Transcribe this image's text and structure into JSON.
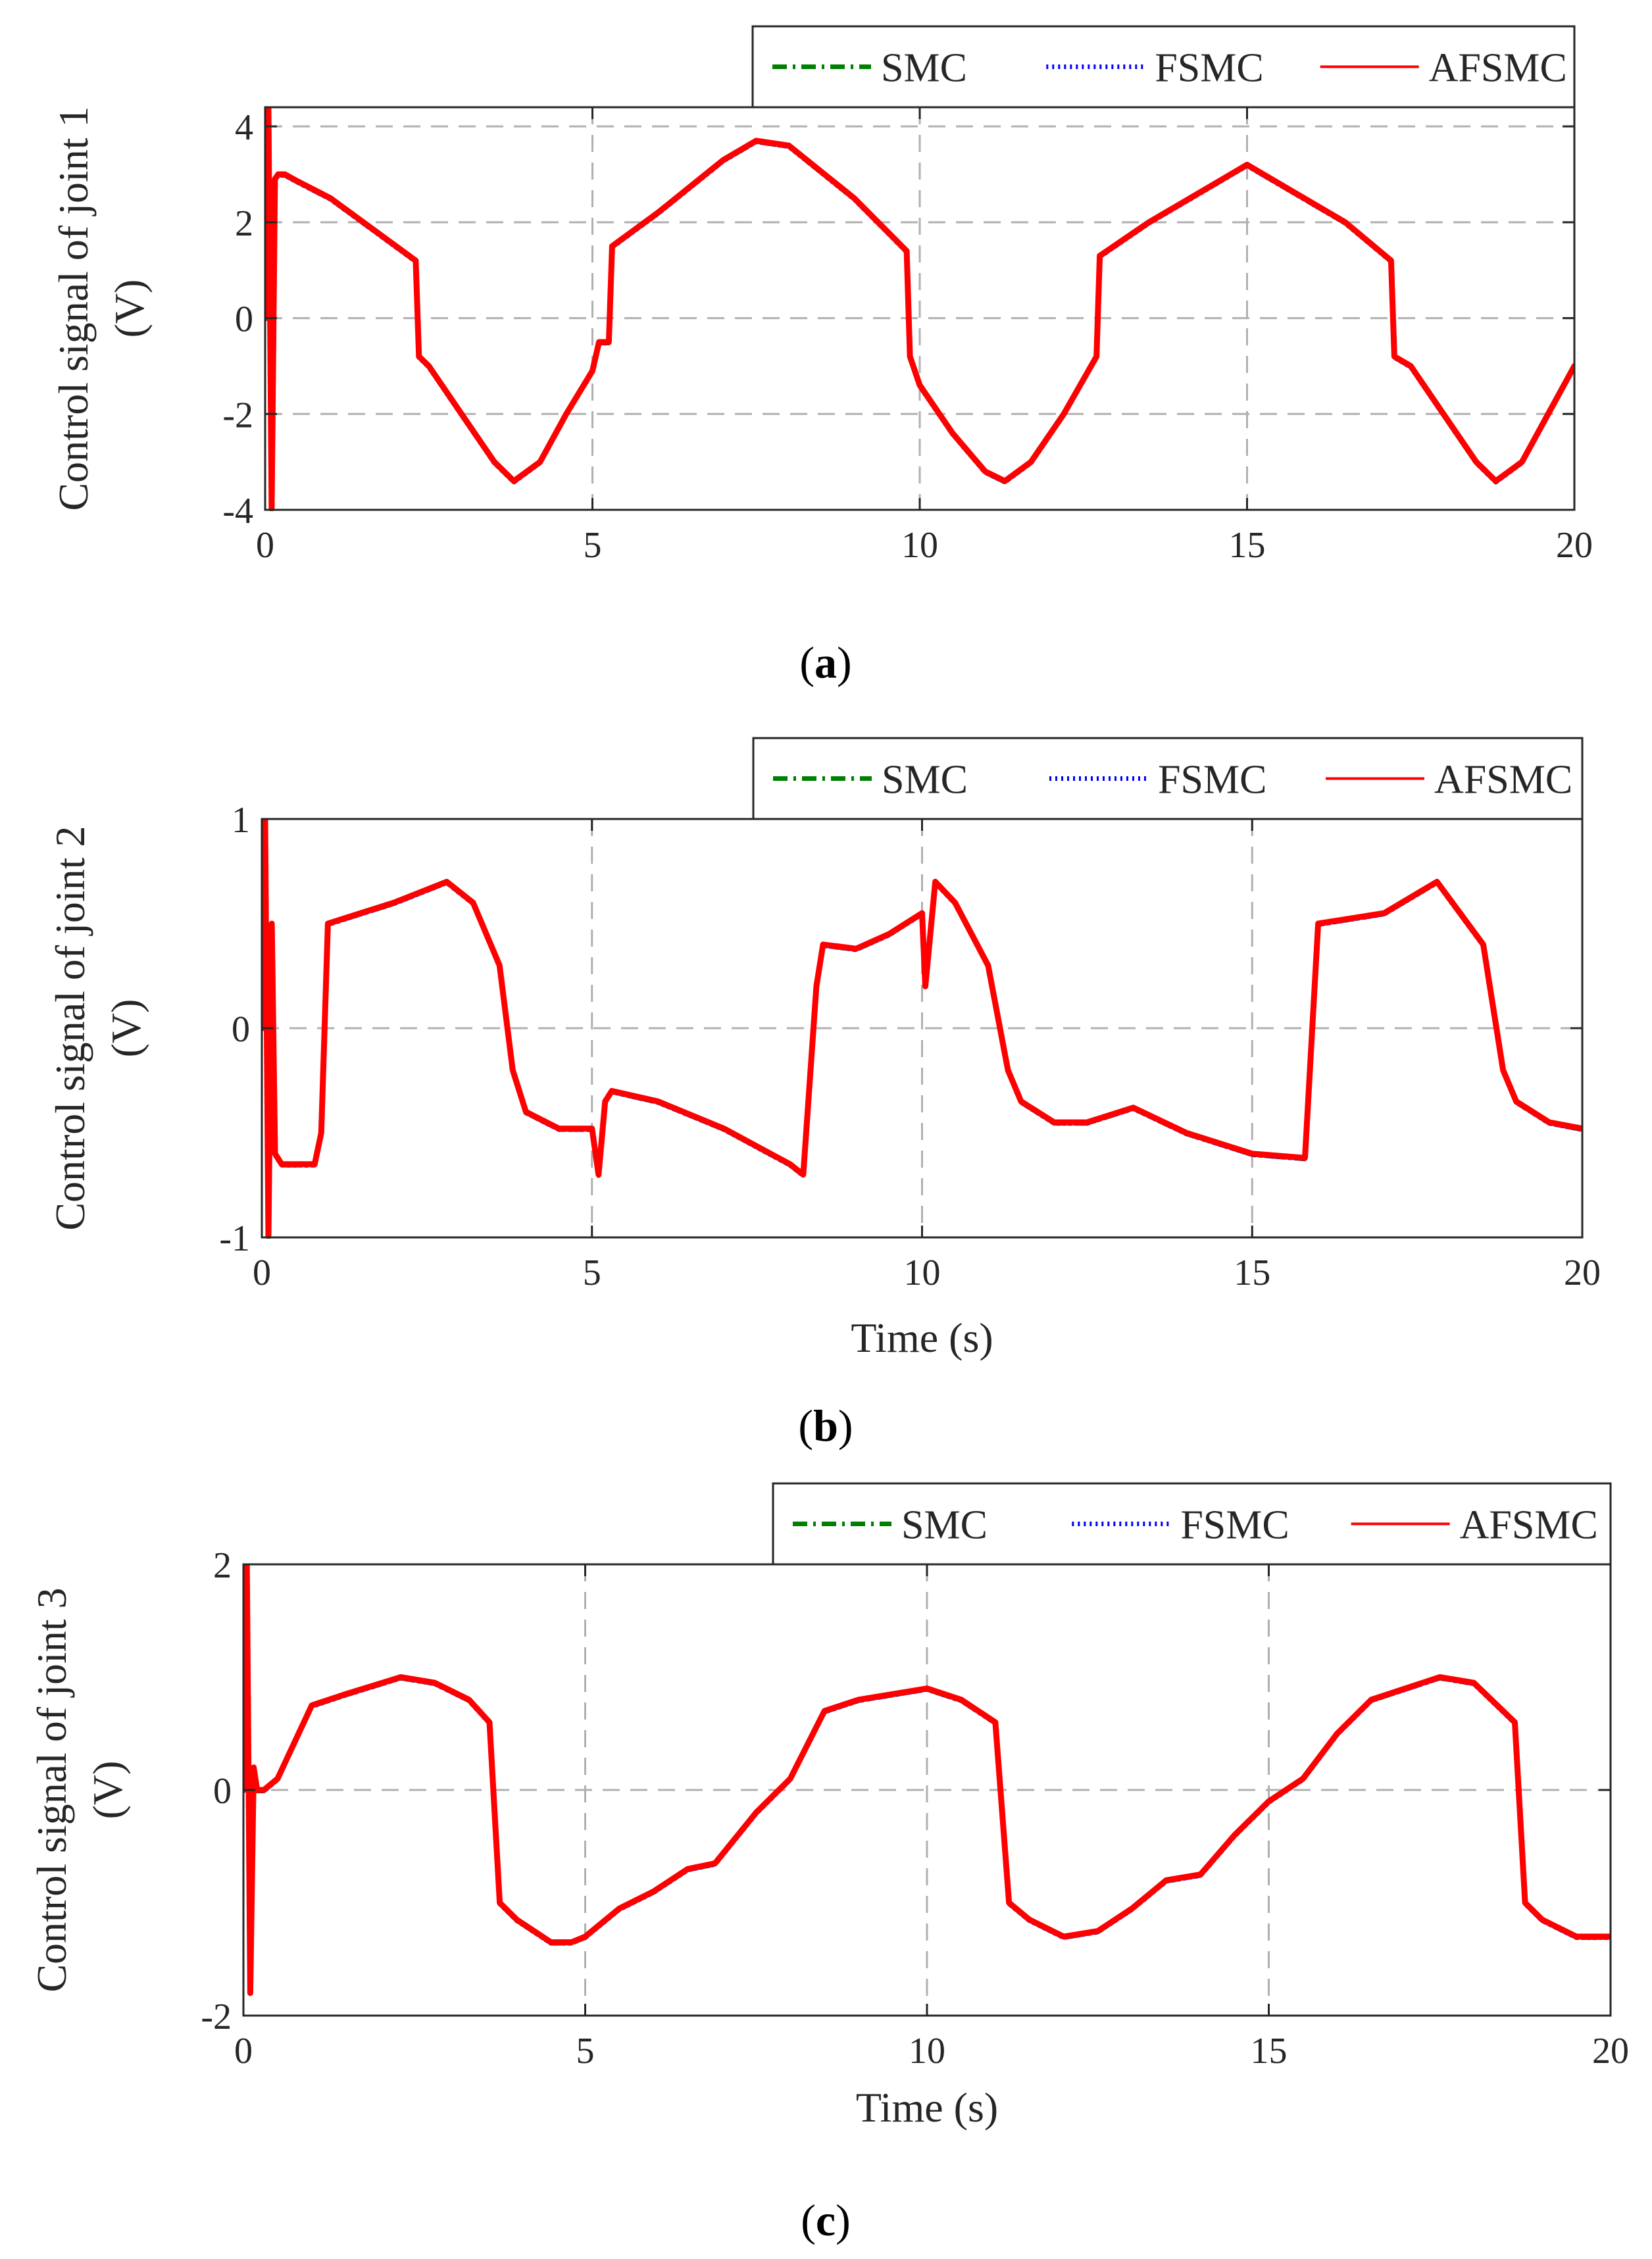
{
  "chart_data": [
    {
      "type": "line",
      "panel": "a",
      "caption_open": "(",
      "caption_letter": "a",
      "caption_close": ")",
      "ylabel": "Control signal of joint 1",
      "ylabel2": "(V)",
      "xlabel": "",
      "xlim": [
        0,
        20
      ],
      "ylim": [
        -4,
        4.4
      ],
      "xticks": [
        0,
        5,
        10,
        15,
        20
      ],
      "yticks": [
        -4,
        -2,
        0,
        2,
        4
      ],
      "grid": true,
      "legend_position": "top-right",
      "legend": [
        "SMC",
        "FSMC",
        "AFSMC"
      ],
      "series_styles": [
        {
          "name": "SMC",
          "color": "#008000",
          "dash": "dashdot"
        },
        {
          "name": "FSMC",
          "color": "#0000ff",
          "dash": "dotted"
        },
        {
          "name": "AFSMC",
          "color": "#ff0000",
          "dash": "solid"
        }
      ],
      "x": [
        0.0,
        0.05,
        0.1,
        0.15,
        0.2,
        0.3,
        0.5,
        1.0,
        1.5,
        2.0,
        2.3,
        2.35,
        2.5,
        3.0,
        3.5,
        3.8,
        4.2,
        4.6,
        5.0,
        5.1,
        5.25,
        5.3,
        6.0,
        7.0,
        7.5,
        8.0,
        9.0,
        9.8,
        9.85,
        10.0,
        10.5,
        11.0,
        11.3,
        11.7,
        12.2,
        12.7,
        12.75,
        13.5,
        14.5,
        15.0,
        15.5,
        16.5,
        17.2,
        17.25,
        17.5,
        18.0,
        18.5,
        18.8,
        19.2,
        20.0
      ],
      "series": [
        {
          "name": "AFSMC",
          "values": [
            0.0,
            4.4,
            -4.0,
            2.9,
            3.0,
            3.0,
            2.85,
            2.5,
            2.0,
            1.5,
            1.2,
            -0.8,
            -1.0,
            -2.0,
            -3.0,
            -3.4,
            -3.0,
            -2.0,
            -1.1,
            -0.5,
            -0.5,
            1.5,
            2.2,
            3.3,
            3.7,
            3.6,
            2.5,
            1.4,
            -0.8,
            -1.4,
            -2.4,
            -3.2,
            -3.4,
            -3.0,
            -2.0,
            -0.8,
            1.3,
            2.0,
            2.8,
            3.2,
            2.8,
            2.0,
            1.2,
            -0.8,
            -1.0,
            -2.0,
            -3.0,
            -3.4,
            -3.0,
            -1.0
          ]
        }
      ]
    },
    {
      "type": "line",
      "panel": "b",
      "caption_open": "(",
      "caption_letter": "b",
      "caption_close": ")",
      "ylabel": "Control signal of joint 2",
      "ylabel2": "(V)",
      "xlabel": "Time (s)",
      "xlim": [
        0,
        20
      ],
      "ylim": [
        -1,
        1
      ],
      "xticks": [
        0,
        5,
        10,
        15,
        20
      ],
      "yticks": [
        -1,
        0,
        1
      ],
      "grid": true,
      "legend_position": "top-right",
      "legend": [
        "SMC",
        "FSMC",
        "AFSMC"
      ],
      "series_styles": [
        {
          "name": "SMC",
          "color": "#008000",
          "dash": "dashdot"
        },
        {
          "name": "FSMC",
          "color": "#0000ff",
          "dash": "dotted"
        },
        {
          "name": "AFSMC",
          "color": "#ff0000",
          "dash": "solid"
        }
      ],
      "x": [
        0.0,
        0.05,
        0.1,
        0.15,
        0.2,
        0.3,
        0.8,
        0.9,
        1.0,
        1.5,
        2.0,
        2.8,
        3.2,
        3.6,
        3.8,
        4.0,
        4.5,
        5.0,
        5.1,
        5.2,
        5.3,
        6.0,
        7.0,
        8.0,
        8.2,
        8.4,
        8.5,
        9.0,
        9.5,
        10.0,
        10.05,
        10.2,
        10.5,
        11.0,
        11.3,
        11.5,
        12.0,
        12.5,
        13.2,
        14.0,
        15.0,
        15.8,
        16.0,
        17.0,
        17.8,
        18.5,
        18.8,
        19.0,
        19.5,
        20.0
      ],
      "series": [
        {
          "name": "AFSMC",
          "values": [
            0.0,
            1.0,
            -1.0,
            0.5,
            -0.6,
            -0.65,
            -0.65,
            -0.5,
            0.5,
            0.55,
            0.6,
            0.7,
            0.6,
            0.3,
            -0.2,
            -0.4,
            -0.48,
            -0.48,
            -0.7,
            -0.35,
            -0.3,
            -0.35,
            -0.48,
            -0.65,
            -0.7,
            0.2,
            0.4,
            0.38,
            0.45,
            0.55,
            0.2,
            0.7,
            0.6,
            0.3,
            -0.2,
            -0.35,
            -0.45,
            -0.45,
            -0.38,
            -0.5,
            -0.6,
            -0.62,
            0.5,
            0.55,
            0.7,
            0.4,
            -0.2,
            -0.35,
            -0.45,
            -0.48
          ]
        }
      ]
    },
    {
      "type": "line",
      "panel": "c",
      "caption_open": "(",
      "caption_letter": "c",
      "caption_close": ")",
      "ylabel": "Control signal of joint 3",
      "ylabel2": "(V)",
      "xlabel": "Time (s)",
      "xlim": [
        0,
        20
      ],
      "ylim": [
        -2,
        2
      ],
      "xticks": [
        0,
        5,
        10,
        15,
        20
      ],
      "yticks": [
        -2,
        0,
        2
      ],
      "grid": true,
      "legend_position": "top-right",
      "legend": [
        "SMC",
        "FSMC",
        "AFSMC"
      ],
      "series_styles": [
        {
          "name": "SMC",
          "color": "#008000",
          "dash": "dashdot"
        },
        {
          "name": "FSMC",
          "color": "#0000ff",
          "dash": "dotted"
        },
        {
          "name": "AFSMC",
          "color": "#ff0000",
          "dash": "solid"
        }
      ],
      "x": [
        0.0,
        0.05,
        0.1,
        0.15,
        0.2,
        0.3,
        0.5,
        1.0,
        1.5,
        2.3,
        2.8,
        3.3,
        3.6,
        3.75,
        4.0,
        4.5,
        4.8,
        5.0,
        5.5,
        6.0,
        6.5,
        6.9,
        7.5,
        8.0,
        8.5,
        9.0,
        10.0,
        10.5,
        11.0,
        11.2,
        11.5,
        12.0,
        12.5,
        13.0,
        13.5,
        14.0,
        14.5,
        15.0,
        15.5,
        16.0,
        16.5,
        17.0,
        17.5,
        18.0,
        18.6,
        18.75,
        19.0,
        19.5,
        20.0
      ],
      "series": [
        {
          "name": "AFSMC",
          "values": [
            0.0,
            2.0,
            -1.8,
            0.2,
            0.0,
            0.0,
            0.1,
            0.75,
            0.85,
            1.0,
            0.95,
            0.8,
            0.6,
            -1.0,
            -1.15,
            -1.35,
            -1.35,
            -1.3,
            -1.05,
            -0.9,
            -0.7,
            -0.65,
            -0.2,
            0.1,
            0.7,
            0.8,
            0.9,
            0.8,
            0.6,
            -1.0,
            -1.15,
            -1.3,
            -1.25,
            -1.05,
            -0.8,
            -0.75,
            -0.4,
            -0.1,
            0.1,
            0.5,
            0.8,
            0.9,
            1.0,
            0.95,
            0.6,
            -1.0,
            -1.15,
            -1.3,
            -1.3
          ]
        }
      ]
    }
  ]
}
